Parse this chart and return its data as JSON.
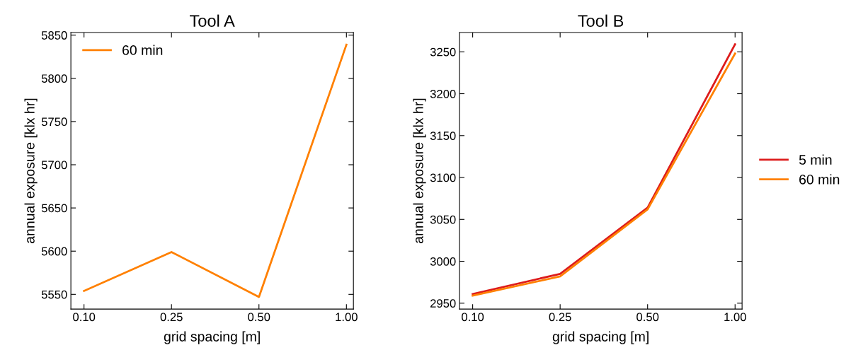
{
  "chart_data": [
    {
      "type": "line",
      "title": "Tool A",
      "xlabel": "grid spacing [m]",
      "ylabel": "annual exposure [klx hr]",
      "categories": [
        "0.10",
        "0.25",
        "0.50",
        "1.00"
      ],
      "series": [
        {
          "name": "60 min",
          "color": "#ff8000",
          "values": [
            5554,
            5599,
            5547,
            5839
          ]
        }
      ],
      "ylim": [
        5533,
        5853
      ],
      "yticks": [
        5550,
        5600,
        5650,
        5700,
        5750,
        5800,
        5850
      ],
      "grid": false,
      "legend": "top left"
    },
    {
      "type": "line",
      "title": "Tool B",
      "xlabel": "grid spacing [m]",
      "ylabel": "annual exposure [klx hr]",
      "categories": [
        "0.10",
        "0.25",
        "0.50",
        "1.00"
      ],
      "series": [
        {
          "name": "5 min",
          "color": "#dd1c1c",
          "values": [
            2961,
            2985,
            3064,
            3259
          ]
        },
        {
          "name": "60 min",
          "color": "#ff8000",
          "values": [
            2959,
            2982,
            3062,
            3248
          ]
        }
      ],
      "ylim": [
        2943,
        3273
      ],
      "yticks": [
        2950,
        3000,
        3050,
        3100,
        3150,
        3200,
        3250
      ],
      "grid": false,
      "legend": "right"
    }
  ]
}
